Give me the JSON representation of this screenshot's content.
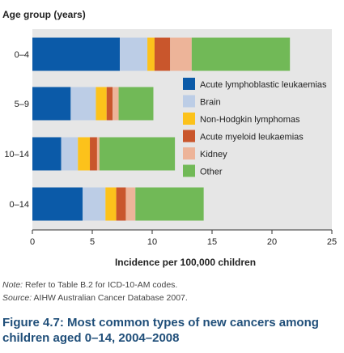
{
  "chart_data": {
    "type": "bar",
    "orientation": "horizontal",
    "stacked": true,
    "ylabel": "Age group (years)",
    "xlabel": "Incidence per 100,000 children",
    "categories": [
      "0–4",
      "5–9",
      "10–14",
      "0–14"
    ],
    "xlim": [
      0,
      25
    ],
    "xticks": [
      0,
      5,
      10,
      15,
      20,
      25
    ],
    "grid": false,
    "legend_position": "right, inside plot",
    "series": [
      {
        "name": "Acute lymphoblastic leukaemias",
        "color": "#0b5aa8",
        "values": [
          7.3,
          3.2,
          2.4,
          4.2
        ]
      },
      {
        "name": "Brain",
        "color": "#bccde6",
        "values": [
          2.3,
          2.1,
          1.4,
          1.9
        ]
      },
      {
        "name": "Non-Hodgkin lymphomas",
        "color": "#fcc21b",
        "values": [
          0.6,
          0.9,
          1.0,
          0.9
        ]
      },
      {
        "name": "Acute myeloid leukaemias",
        "color": "#c9562c",
        "values": [
          1.3,
          0.5,
          0.6,
          0.8
        ]
      },
      {
        "name": "Kidney",
        "color": "#edb499",
        "values": [
          1.8,
          0.5,
          0.2,
          0.8
        ]
      },
      {
        "name": "Other",
        "color": "#71b957",
        "values": [
          8.2,
          2.9,
          6.3,
          5.7
        ]
      }
    ]
  },
  "colors": {
    "axis_background": "#e6e6e6",
    "caption": "#1f4e79",
    "text": "#222222"
  },
  "note": {
    "label": "Note:",
    "text": " Refer to Table B.2 for ICD-10-AM codes."
  },
  "source": {
    "label": "Source:",
    "text": " AIHW Australian Cancer Database 2007."
  },
  "caption": "Figure 4.7: Most common types of new cancers among children aged 0–14, 2004–2008"
}
